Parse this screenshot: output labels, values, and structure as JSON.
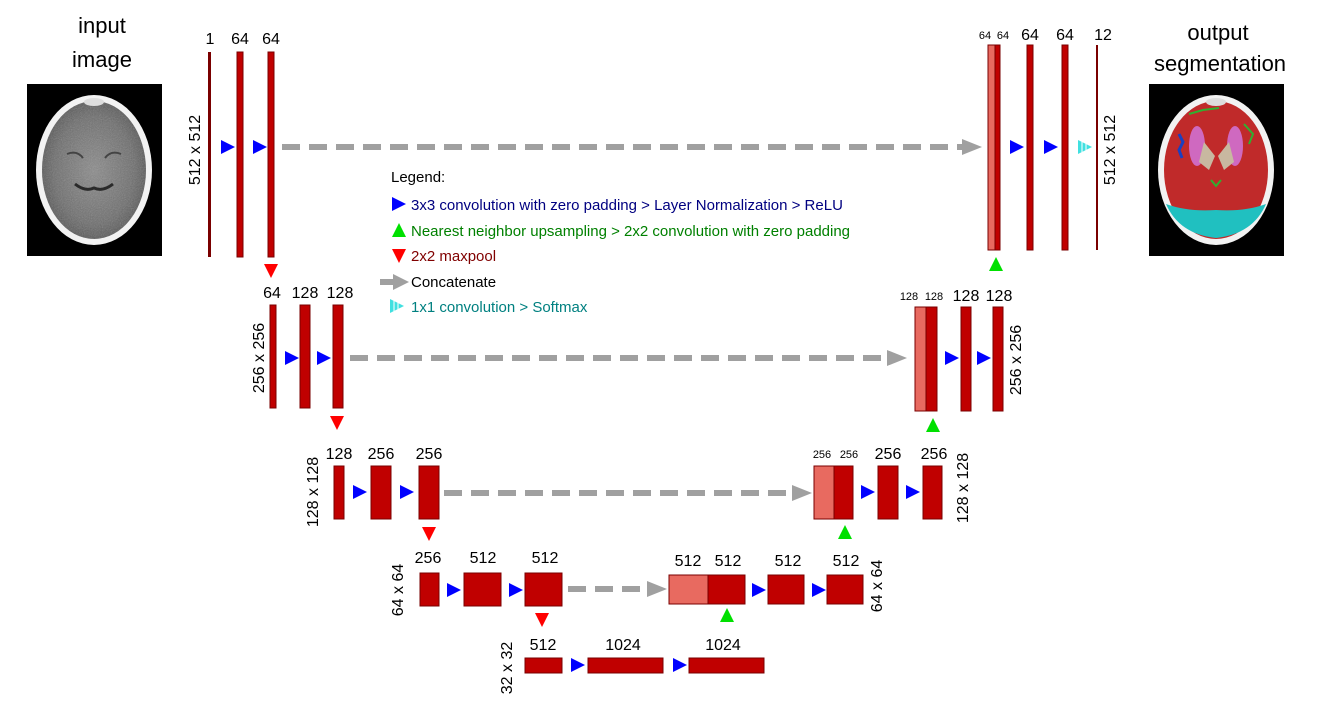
{
  "input_title": [
    "input",
    "image"
  ],
  "output_title": [
    "output",
    "segmentation"
  ],
  "resolutions": {
    "r512_left": "512 x 512",
    "r512_right": "512 x 512",
    "r256_left": "256 x 256",
    "r256_right": "256 x 256",
    "r128_left": "128 x 128",
    "r128_right": "128 x 128",
    "r64_left": "64 x 64",
    "r64_right": "64 x 64",
    "r32": "32 x 32"
  },
  "channels": {
    "enc1": [
      "1",
      "64",
      "64"
    ],
    "dec1": [
      "64",
      "64",
      "64",
      "64",
      "12"
    ],
    "enc2": [
      "64",
      "128",
      "128"
    ],
    "dec2": [
      "128",
      "128",
      "128",
      "128"
    ],
    "enc3": [
      "128",
      "256",
      "256"
    ],
    "dec3": [
      "256",
      "256",
      "256",
      "256"
    ],
    "enc4": [
      "256",
      "512",
      "512"
    ],
    "dec4": [
      "512",
      "512",
      "512",
      "512"
    ],
    "bottom": [
      "512",
      "1024",
      "1024"
    ]
  },
  "legend": {
    "title": "Legend:",
    "items": [
      {
        "symbol": "conv-arrow-icon",
        "color": "#0000ff",
        "text": "3x3 convolution with zero padding > Layer Normalization > ReLU",
        "text_color": "#000080"
      },
      {
        "symbol": "upsample-arrow-icon",
        "color": "#00e000",
        "text": "Nearest neighbor upsampling > 2x2 convolution with zero padding",
        "text_color": "#008000"
      },
      {
        "symbol": "maxpool-arrow-icon",
        "color": "#ff0000",
        "text": "2x2 maxpool",
        "text_color": "#800000"
      },
      {
        "symbol": "concat-arrow-icon",
        "color": "#a0a0a0",
        "text": "Concatenate",
        "text_color": "#000000"
      },
      {
        "symbol": "softmax-arrow-icon",
        "color": "#40e0e0",
        "text": "1x1 convolution > Softmax",
        "text_color": "#008080"
      }
    ]
  },
  "colors": {
    "block": "#c00000",
    "block_skip": "#e86a60",
    "conv": "#0000ff",
    "upsample": "#00e000",
    "maxpool": "#ff0000",
    "concat": "#a0a0a0",
    "softmax": "#40e0e0"
  }
}
